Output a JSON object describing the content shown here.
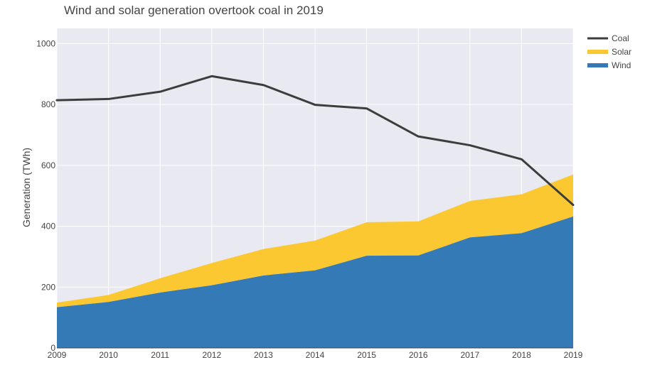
{
  "chart_data": {
    "type": "area",
    "title": "Wind and solar generation overtook coal in 2019",
    "xlabel": "",
    "ylabel": "Generation (TWh)",
    "x": [
      2009,
      2010,
      2011,
      2012,
      2013,
      2014,
      2015,
      2016,
      2017,
      2018,
      2019
    ],
    "xlim": [
      2009,
      2019
    ],
    "ylim": [
      0,
      1050
    ],
    "yticks": [
      0,
      200,
      400,
      600,
      800,
      1000
    ],
    "grid": true,
    "legend_position": "top-right",
    "stacked": true,
    "series": [
      {
        "name": "Wind",
        "kind": "area",
        "color": "#337ab7",
        "values": [
          134,
          151,
          182,
          206,
          238,
          255,
          303,
          304,
          363,
          377,
          432
        ]
      },
      {
        "name": "Solar",
        "kind": "area",
        "color": "#fcc832",
        "values": [
          15,
          23,
          47,
          73,
          87,
          98,
          110,
          112,
          120,
          128,
          138
        ]
      },
      {
        "name": "Coal",
        "kind": "line",
        "color": "#3d3d3d",
        "values": [
          814,
          818,
          842,
          893,
          864,
          799,
          787,
          695,
          666,
          620,
          470
        ]
      }
    ],
    "legend_order": [
      "Coal",
      "Solar",
      "Wind"
    ],
    "colors": {
      "plot_background": "#e9e9f1",
      "grid": "#ffffff",
      "text": "#444444"
    }
  }
}
